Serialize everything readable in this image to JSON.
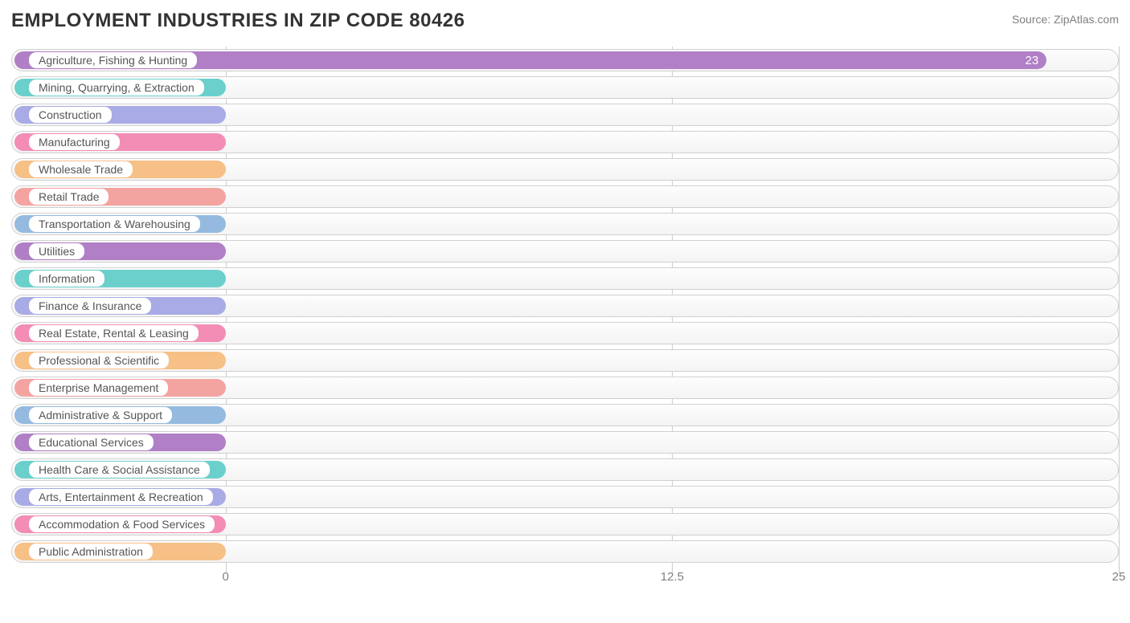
{
  "title": "EMPLOYMENT INDUSTRIES IN ZIP CODE 80426",
  "source": "Source: ZipAtlas.com",
  "chart": {
    "type": "bar-horizontal",
    "xmin": -6,
    "xmax": 25,
    "ticks": [
      0,
      12.5,
      25
    ],
    "tick_labels": [
      "0",
      "12.5",
      "25"
    ],
    "grid_color": "#cccccc",
    "track_border": "#d0d0d0",
    "track_bg_top": "#fdfdfd",
    "track_bg_bottom": "#f4f4f4",
    "label_text_color": "#555555",
    "value_out_color": "#808080",
    "value_in_color": "#ffffff",
    "colors": {
      "purple": "#b07fc6",
      "teal": "#6bd0cc",
      "periwinkle": "#a8abe5",
      "pink": "#f38db5",
      "orange": "#f6c086",
      "coral": "#f3a3a0",
      "blue": "#95badf"
    },
    "rows": [
      {
        "label": "Agriculture, Fishing & Hunting",
        "value": 23,
        "color": "purple"
      },
      {
        "label": "Mining, Quarrying, & Extraction",
        "value": 0,
        "color": "teal"
      },
      {
        "label": "Construction",
        "value": 0,
        "color": "periwinkle"
      },
      {
        "label": "Manufacturing",
        "value": 0,
        "color": "pink"
      },
      {
        "label": "Wholesale Trade",
        "value": 0,
        "color": "orange"
      },
      {
        "label": "Retail Trade",
        "value": 0,
        "color": "coral"
      },
      {
        "label": "Transportation & Warehousing",
        "value": 0,
        "color": "blue"
      },
      {
        "label": "Utilities",
        "value": 0,
        "color": "purple"
      },
      {
        "label": "Information",
        "value": 0,
        "color": "teal"
      },
      {
        "label": "Finance & Insurance",
        "value": 0,
        "color": "periwinkle"
      },
      {
        "label": "Real Estate, Rental & Leasing",
        "value": 0,
        "color": "pink"
      },
      {
        "label": "Professional & Scientific",
        "value": 0,
        "color": "orange"
      },
      {
        "label": "Enterprise Management",
        "value": 0,
        "color": "coral"
      },
      {
        "label": "Administrative & Support",
        "value": 0,
        "color": "blue"
      },
      {
        "label": "Educational Services",
        "value": 0,
        "color": "purple"
      },
      {
        "label": "Health Care & Social Assistance",
        "value": 0,
        "color": "teal"
      },
      {
        "label": "Arts, Entertainment & Recreation",
        "value": 0,
        "color": "periwinkle"
      },
      {
        "label": "Accommodation & Food Services",
        "value": 0,
        "color": "pink"
      },
      {
        "label": "Public Administration",
        "value": 0,
        "color": "orange"
      }
    ]
  }
}
